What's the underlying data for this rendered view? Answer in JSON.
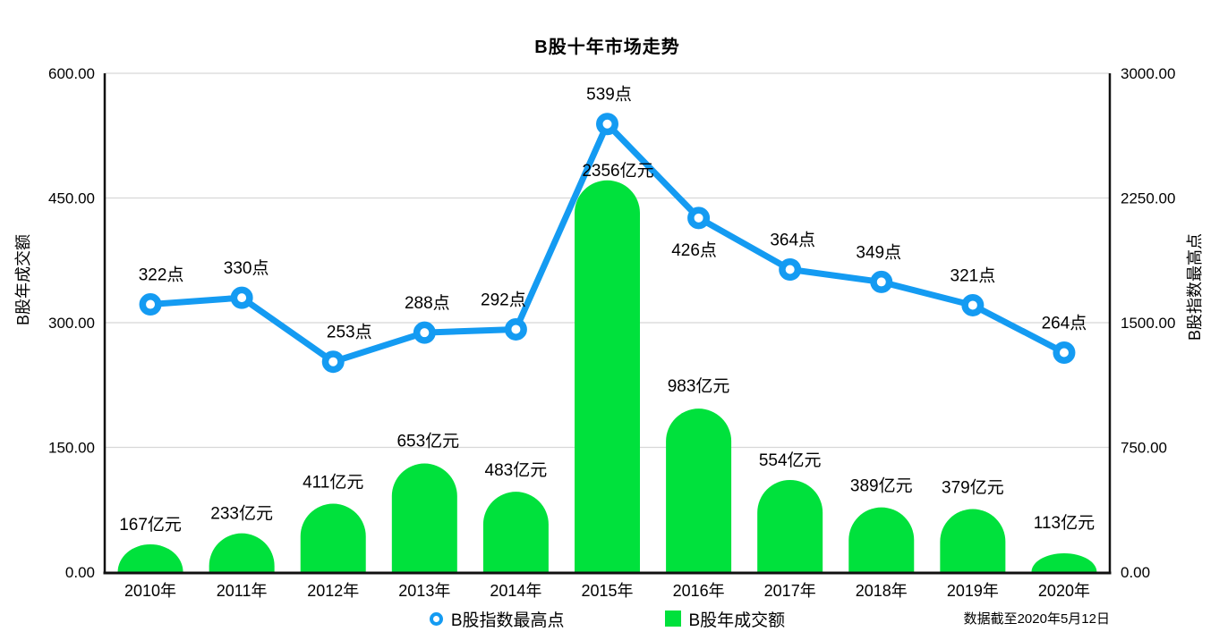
{
  "title": "B股十年市场走势",
  "footnote": "数据截至2020年5月12日",
  "left_axis": {
    "title": "B股年成交额",
    "ticks": [
      "600.00",
      "450.00",
      "300.00",
      "150.00",
      "0.00"
    ]
  },
  "right_axis": {
    "title": "B股指数最高点",
    "ticks": [
      "3000.00",
      "2250.00",
      "1500.00",
      "750.00",
      "0.00"
    ]
  },
  "legend": {
    "line_label": "B股指数最高点",
    "bar_label": "B股年成交额"
  },
  "colors": {
    "line": "#149BF2",
    "bar": "#00E13C",
    "grid": "#D7D7D7",
    "axis": "#111111",
    "text": "#000000"
  },
  "chart_data": {
    "type": "combo",
    "categories": [
      "2010年",
      "2011年",
      "2012年",
      "2013年",
      "2014年",
      "2015年",
      "2016年",
      "2017年",
      "2018年",
      "2019年",
      "2020年"
    ],
    "series": [
      {
        "name": "B股指数最高点",
        "type": "line",
        "unit": "点",
        "color": "#149BF2",
        "ylim": [
          0,
          600
        ],
        "axis_ticks_side": "left",
        "values": [
          322,
          330,
          253,
          288,
          292,
          539,
          426,
          364,
          349,
          321,
          264
        ],
        "labels": [
          "322点",
          "330点",
          "253点",
          "288点",
          "292点",
          "539点",
          "426点",
          "364点",
          "349点",
          "321点",
          "264点"
        ]
      },
      {
        "name": "B股年成交额",
        "type": "bar",
        "unit": "亿元",
        "color": "#00E13C",
        "ylim": [
          0,
          3000
        ],
        "axis_ticks_side": "right",
        "values": [
          167,
          233,
          411,
          653,
          483,
          2356,
          983,
          554,
          389,
          379,
          113
        ],
        "labels": [
          "167亿元",
          "233亿元",
          "411亿元",
          "653亿元",
          "483亿元",
          "2356亿元",
          "983亿元",
          "554亿元",
          "389亿元",
          "379亿元",
          "113亿元"
        ]
      }
    ],
    "grid": true,
    "legend_position": "bottom",
    "layout_hints": {
      "line_label_dx": [
        12,
        5,
        18,
        3,
        -14,
        2,
        -5,
        3,
        -3,
        0,
        0
      ],
      "line_label_below_index": 6,
      "line_label_dy_above": -27,
      "line_label_dy_below": 42,
      "bar_label_dx": [
        0,
        0,
        0,
        4,
        0,
        12,
        0,
        0,
        0,
        0,
        0
      ],
      "bar_label_dy": [
        -16,
        -16,
        -18,
        -19,
        -18,
        -5,
        -19,
        -16,
        -18,
        -18,
        -28
      ]
    }
  }
}
